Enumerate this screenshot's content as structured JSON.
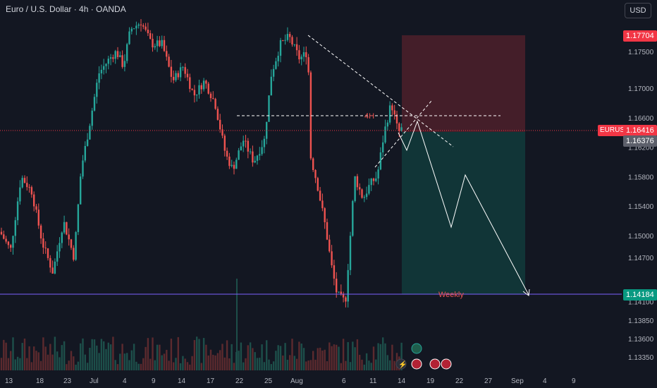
{
  "header": {
    "symbol_title": "Euro / U.S. Dollar · 4h · OANDA",
    "currency_button": "USD"
  },
  "price_axis": {
    "ticks": [
      "1.17500",
      "1.17000",
      "1.16600",
      "1.16200",
      "1.15800",
      "1.15400",
      "1.15000",
      "1.14700",
      "1.14100",
      "1.13850",
      "1.13600",
      "1.13350"
    ],
    "highlight_labels": {
      "target_high": "1.17704",
      "last_price_symbol": "EURUSD",
      "last_price": "1.16416",
      "entry": "1.16376",
      "weekly_level": "1.14184"
    }
  },
  "time_axis": {
    "ticks": [
      "13",
      "18",
      "23",
      "Jul",
      "4",
      "9",
      "14",
      "17",
      "22",
      "25",
      "Aug",
      "6",
      "11",
      "14",
      "19",
      "22",
      "27",
      "Sep",
      "4",
      "9"
    ]
  },
  "annotations": {
    "timeframe_label": "4H",
    "weekly_label": "Weekly"
  },
  "colors": {
    "background": "#131722",
    "bull": "#26a69a",
    "bear": "#ef5350",
    "stop_zone": "#4a1f2a",
    "target_zone": "#12393a",
    "weekly_line": "#7b61ff",
    "last_price": "#f23645",
    "entry_label": "#5d606b"
  },
  "icons": [
    "flash-icon",
    "us-flag-event-icon",
    "eu-flag-event-icon",
    "news-event-icon"
  ]
}
